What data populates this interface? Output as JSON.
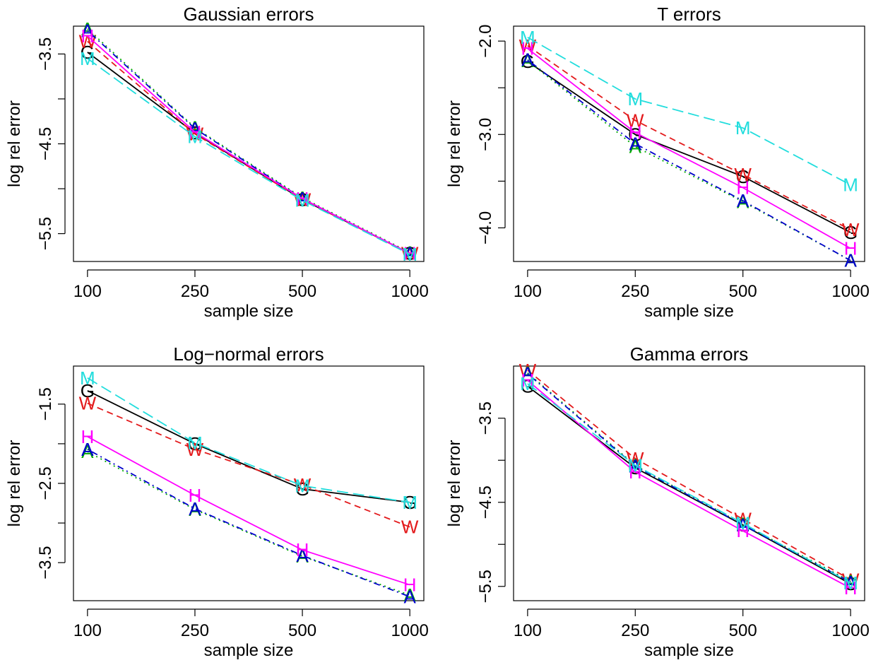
{
  "chart_data": [
    {
      "type": "line",
      "title": "Gaussian errors",
      "xlabel": "sample size",
      "ylabel": "log rel error",
      "categories": [
        "100",
        "250",
        "500",
        "1000"
      ],
      "ylim": [
        -5.81,
        -3.19
      ],
      "yticks": [
        -3.5,
        -4.5,
        -5.5
      ],
      "yticks_minor": [
        -4,
        -5
      ],
      "series": [
        {
          "marker": "G",
          "color": "#000000",
          "dash": "solid",
          "values": [
            -3.48,
            -4.38,
            -5.12,
            -5.72
          ]
        },
        {
          "marker": "W",
          "color": "#e31a1c",
          "dash": "dashed",
          "values": [
            -3.36,
            -4.39,
            -5.12,
            -5.72
          ]
        },
        {
          "marker": "A",
          "color": "#00aa00",
          "dash": "dotted",
          "values": [
            -3.22,
            -4.32,
            -5.1,
            -5.71
          ]
        },
        {
          "marker": "A",
          "color": "#0000cc",
          "dash": "dashdot",
          "values": [
            -3.24,
            -4.33,
            -5.11,
            -5.72
          ]
        },
        {
          "marker": "H",
          "color": "#ff00ff",
          "dash": "solid",
          "values": [
            -3.3,
            -4.37,
            -5.11,
            -5.72
          ]
        },
        {
          "marker": "M",
          "color": "#22dddd",
          "dash": "longdash",
          "values": [
            -3.55,
            -4.42,
            -5.13,
            -5.73
          ]
        }
      ]
    },
    {
      "type": "line",
      "title": "T errors",
      "xlabel": "sample size",
      "ylabel": "log rel error",
      "categories": [
        "100",
        "250",
        "500",
        "1000"
      ],
      "ylim": [
        -4.36,
        -1.84
      ],
      "yticks": [
        -2.0,
        -3.0,
        -4.0
      ],
      "yticks_minor": [
        -2.5,
        -3.5
      ],
      "series": [
        {
          "marker": "G",
          "color": "#000000",
          "dash": "solid",
          "values": [
            -2.22,
            -3.0,
            -3.45,
            -4.05
          ]
        },
        {
          "marker": "W",
          "color": "#e31a1c",
          "dash": "dashed",
          "values": [
            -2.05,
            -2.85,
            -3.43,
            -4.02
          ]
        },
        {
          "marker": "A",
          "color": "#00aa00",
          "dash": "dotted",
          "values": [
            -2.21,
            -3.13,
            -3.72,
            -4.35
          ]
        },
        {
          "marker": "A",
          "color": "#0000cc",
          "dash": "dashdot",
          "values": [
            -2.2,
            -3.1,
            -3.71,
            -4.35
          ]
        },
        {
          "marker": "H",
          "color": "#ff00ff",
          "dash": "solid",
          "values": [
            -2.08,
            -2.98,
            -3.57,
            -4.22
          ]
        },
        {
          "marker": "M",
          "color": "#22dddd",
          "dash": "longdash",
          "values": [
            -1.96,
            -2.62,
            -2.93,
            -3.54
          ]
        }
      ]
    },
    {
      "type": "line",
      "title": "Log−normal errors",
      "xlabel": "sample size",
      "ylabel": "log rel error",
      "categories": [
        "100",
        "250",
        "500",
        "1000"
      ],
      "ylim": [
        -3.98,
        -1.02
      ],
      "yticks": [
        -1.5,
        -2.5,
        -3.5
      ],
      "yticks_minor": [
        -2,
        -3
      ],
      "series": [
        {
          "marker": "G",
          "color": "#000000",
          "dash": "solid",
          "values": [
            -1.33,
            -2.0,
            -2.57,
            -2.74
          ]
        },
        {
          "marker": "W",
          "color": "#e31a1c",
          "dash": "dashed",
          "values": [
            -1.49,
            -2.07,
            -2.52,
            -3.05
          ]
        },
        {
          "marker": "A",
          "color": "#00aa00",
          "dash": "dotted",
          "values": [
            -2.1,
            -2.83,
            -3.42,
            -3.91
          ]
        },
        {
          "marker": "A",
          "color": "#0000cc",
          "dash": "dashdot",
          "values": [
            -2.07,
            -2.82,
            -3.41,
            -3.93
          ]
        },
        {
          "marker": "H",
          "color": "#ff00ff",
          "dash": "solid",
          "values": [
            -1.91,
            -2.65,
            -3.34,
            -3.78
          ]
        },
        {
          "marker": "M",
          "color": "#22dddd",
          "dash": "longdash",
          "values": [
            -1.17,
            -1.99,
            -2.53,
            -2.74
          ]
        }
      ]
    },
    {
      "type": "line",
      "title": "Gamma errors",
      "xlabel": "sample size",
      "ylabel": "log rel error",
      "categories": [
        "100",
        "250",
        "500",
        "1000"
      ],
      "ylim": [
        -5.67,
        -2.88
      ],
      "yticks": [
        -3.5,
        -4.5,
        -5.5
      ],
      "yticks_minor": [
        -4,
        -5
      ],
      "series": [
        {
          "marker": "G",
          "color": "#000000",
          "dash": "solid",
          "values": [
            -3.12,
            -4.09,
            -4.77,
            -5.47
          ]
        },
        {
          "marker": "W",
          "color": "#e31a1c",
          "dash": "dashed",
          "values": [
            -2.93,
            -3.98,
            -4.7,
            -5.42
          ]
        },
        {
          "marker": "A",
          "color": "#00aa00",
          "dash": "dotted",
          "values": [
            -2.96,
            -4.06,
            -4.76,
            -5.44
          ]
        },
        {
          "marker": "A",
          "color": "#0000cc",
          "dash": "dashdot",
          "values": [
            -2.97,
            -4.07,
            -4.77,
            -5.45
          ]
        },
        {
          "marker": "H",
          "color": "#ff00ff",
          "dash": "solid",
          "values": [
            -3.05,
            -4.14,
            -4.84,
            -5.52
          ]
        },
        {
          "marker": "M",
          "color": "#22dddd",
          "dash": "longdash",
          "values": [
            -3.09,
            -4.06,
            -4.75,
            -5.46
          ]
        }
      ]
    }
  ]
}
